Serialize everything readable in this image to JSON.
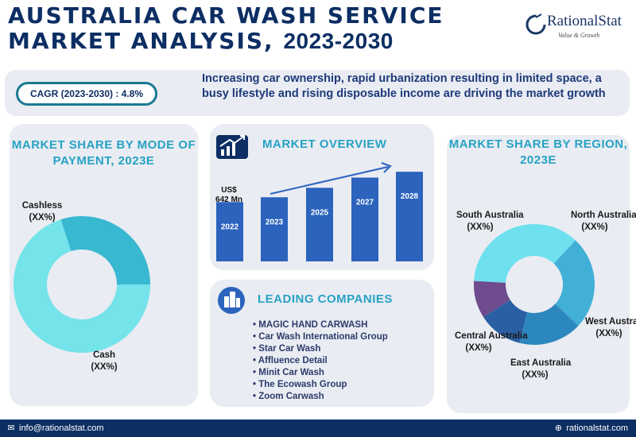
{
  "header": {
    "title_line1": "AUSTRALIA CAR WASH SERVICE",
    "title_line2_prefix": "MARKET ANALYSIS, ",
    "title_line2_years": "2023-2030"
  },
  "logo": {
    "name": "RationalStat",
    "tagline": "Value & Growth"
  },
  "summary": {
    "cagr": "CAGR (2023-2030) : 4.8%",
    "drivers": "Increasing car ownership, rapid urbanization resulting in limited space, a busy lifestyle and rising disposable income are driving the market growth"
  },
  "sections": {
    "payment_title": "MARKET SHARE BY MODE OF PAYMENT, 2023E",
    "overview_title": "MARKET OVERVIEW",
    "leading_title": "LEADING COMPANIES",
    "region_title": "MARKET SHARE BY REGION, 2023E"
  },
  "leading_companies": [
    "MAGIC HAND CARWASH",
    "Car Wash International Group",
    "Star Car Wash",
    "Affluence Detail",
    "Minit Car Wash",
    "The Ecowash Group",
    "Zoom Carwash"
  ],
  "colors": {
    "navy": "#0c2e63",
    "accent": "#27a2c4",
    "bar": "#2b63bd",
    "panel": "#e9ecf2"
  },
  "icons": [
    "growth-chart-icon",
    "buildings-icon",
    "email-icon",
    "globe-icon"
  ],
  "chart_data": [
    {
      "type": "pie",
      "title": "MARKET SHARE BY MODE OF PAYMENT, 2023E",
      "labels": [
        "Cashless",
        "Cash"
      ],
      "value_labels": [
        "(XX%)",
        "(XX%)"
      ],
      "values": [
        70,
        30
      ],
      "colors": [
        "#74e3ea",
        "#39b8d2"
      ],
      "donut": true
    },
    {
      "type": "bar",
      "title": "MARKET OVERVIEW",
      "categories": [
        "2022",
        "2023",
        "2025",
        "2027",
        "2028"
      ],
      "values": [
        642,
        675,
        740,
        810,
        850
      ],
      "annotation": "US$ 642 Mn",
      "trend_arrow": true,
      "color": "#2b63bd"
    },
    {
      "type": "pie",
      "title": "MARKET SHARE BY REGION, 2023E",
      "labels": [
        "North Australia",
        "West Australia",
        "East Australia",
        "Central Australia",
        "South Australia"
      ],
      "value_labels": [
        "(XX%)",
        "(XX%)",
        "(XX%)",
        "(XX%)",
        "(XX%)"
      ],
      "values": [
        25,
        17,
        12,
        10,
        36
      ],
      "colors": [
        "#42b0d6",
        "#2d87bf",
        "#2a5fa3",
        "#6e4c8e",
        "#6ee0ee"
      ],
      "donut": true
    }
  ],
  "footer": {
    "email": "info@rationalstat.com",
    "website": "rationalstat.com"
  }
}
